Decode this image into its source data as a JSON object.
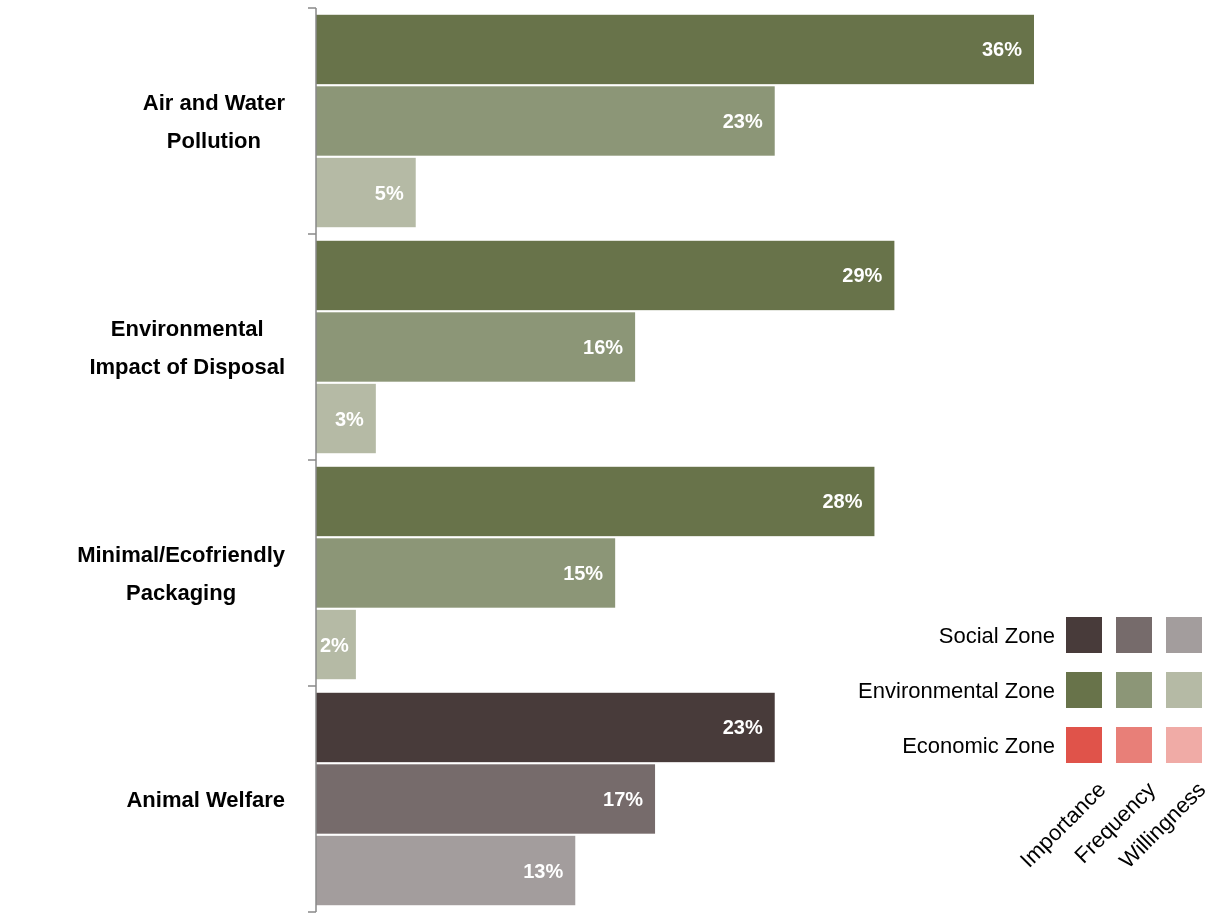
{
  "chart_data": {
    "type": "bar",
    "orientation": "horizontal",
    "categories": [
      "Air and Water Pollution",
      "Environmental Impact of Disposal",
      "Minimal/Ecofriendly Packaging",
      "Animal Welfare"
    ],
    "series": [
      {
        "name": "Importance",
        "colors": [
          "#68734a",
          "#68734a",
          "#68734a",
          "#483b3a"
        ],
        "values": [
          36,
          29,
          28,
          23
        ],
        "value_labels": [
          "36%",
          "29%",
          "28%",
          "23%"
        ]
      },
      {
        "name": "Frequency",
        "colors": [
          "#8c9677",
          "#8c9677",
          "#8c9677",
          "#766b6b"
        ],
        "values": [
          23,
          16,
          15,
          17
        ],
        "value_labels": [
          "23%",
          "16%",
          "15%",
          "17%"
        ]
      },
      {
        "name": "Willingness",
        "colors": [
          "#b5baa5",
          "#b5baa5",
          "#b5baa5",
          "#a39d9d"
        ],
        "values": [
          5,
          3,
          2,
          13
        ],
        "value_labels": [
          "5%",
          "3%",
          "2%",
          "13%"
        ]
      }
    ],
    "legend": "bottom right",
    "annotations": [
      "Social Zone",
      "Environmental Zone",
      "Economic Zone"
    ]
  }
}
